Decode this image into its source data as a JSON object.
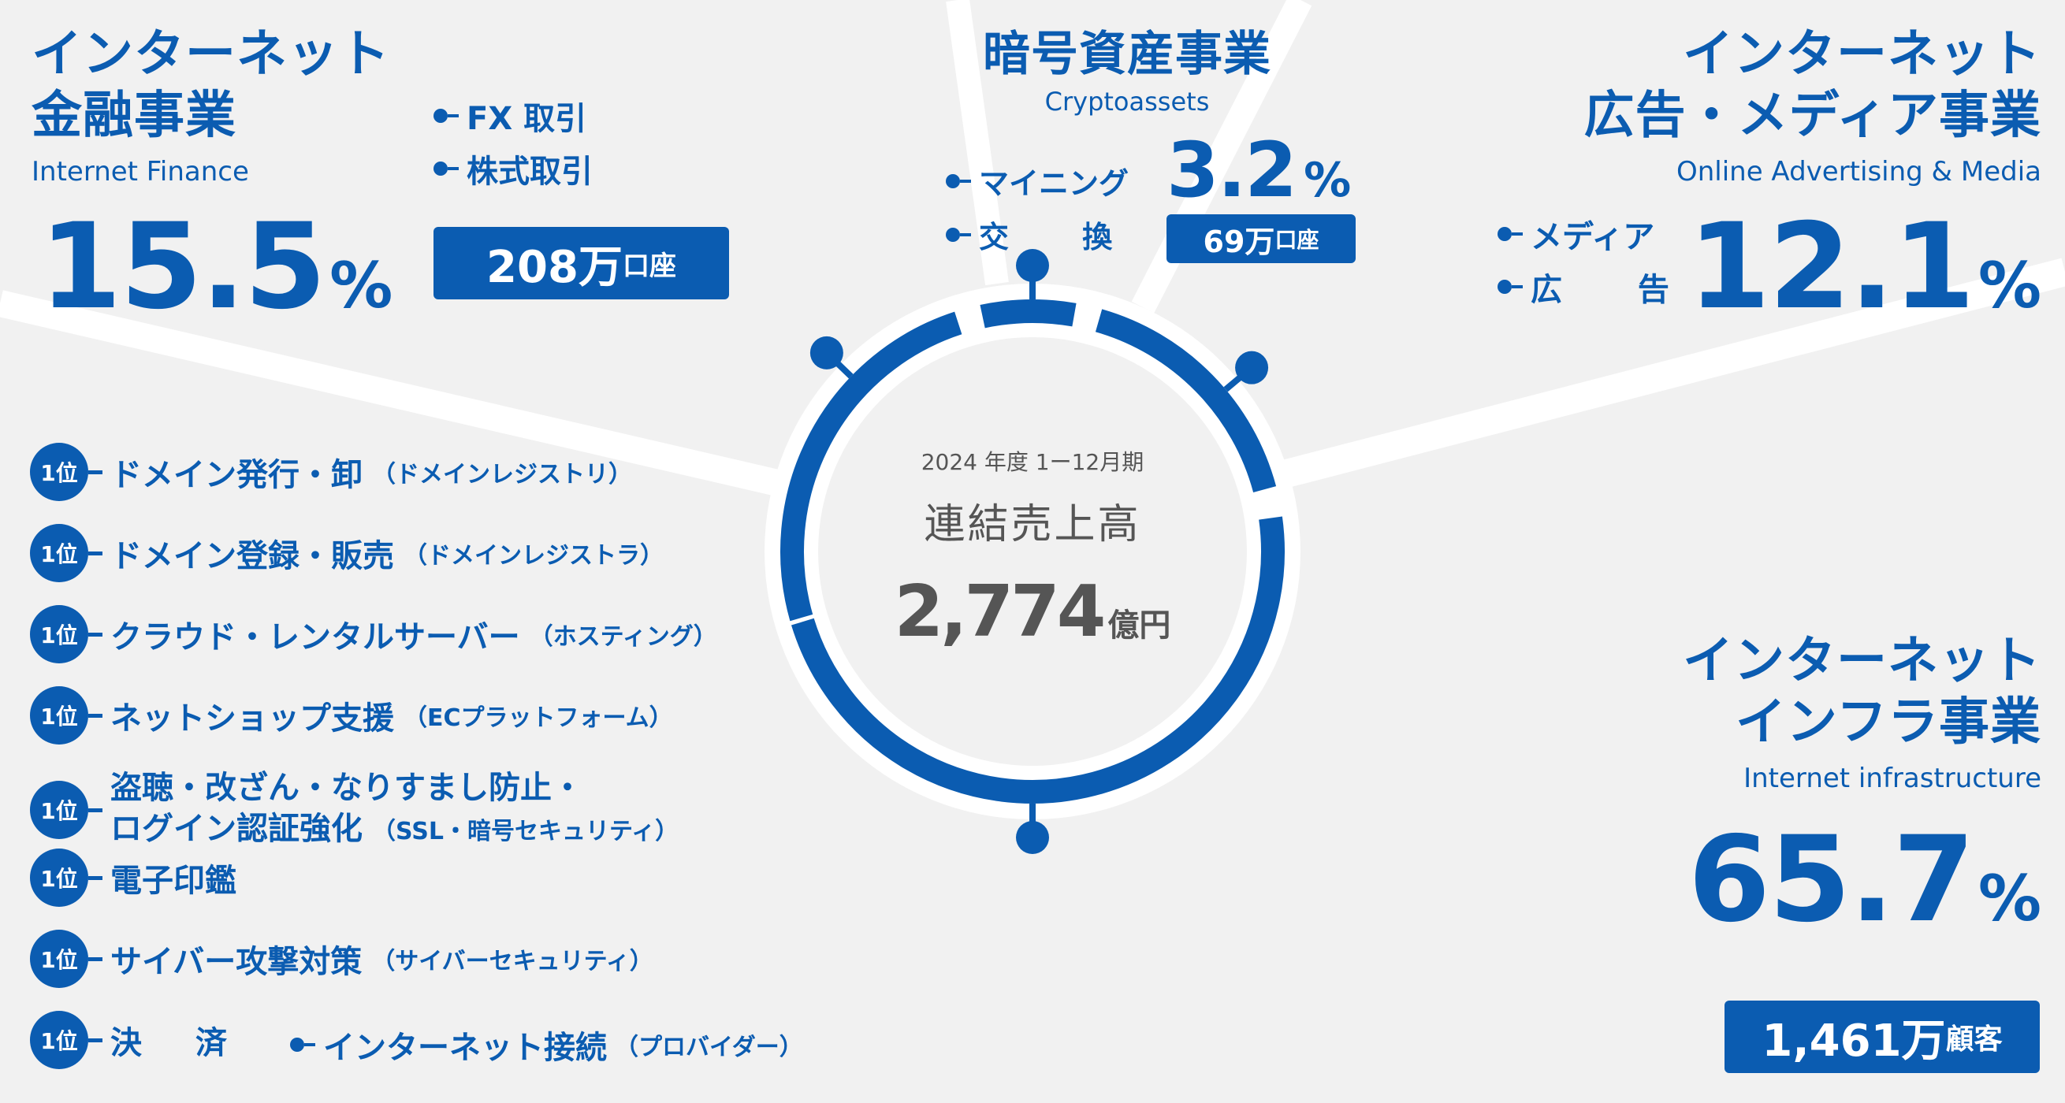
{
  "center": {
    "period": "2024 年度 1ー12月期",
    "label": "連結売上高",
    "value": "2,774",
    "unit": "億円"
  },
  "segments": {
    "finance": {
      "title_line1": "インターネット",
      "title_line2": "金融事業",
      "subtitle": "Internet Finance",
      "share_value": "15.5",
      "share_unit": "%",
      "items": [
        "FX 取引",
        "株式取引"
      ],
      "metric_value": "208万",
      "metric_unit": "口座"
    },
    "crypto": {
      "title": "暗号資産事業",
      "subtitle": "Cryptoassets",
      "items": [
        "マイニング",
        "交　 換"
      ],
      "share_value": "3.2",
      "share_unit": "%",
      "metric_value": "69万",
      "metric_unit": "口座"
    },
    "advertising": {
      "title_line1": "インターネット",
      "title_line2": "広告・メディア事業",
      "subtitle": "Online Advertising & Media",
      "items": [
        "メディア",
        "広　 告"
      ],
      "share_value": "12.1",
      "share_unit": "%"
    },
    "infrastructure": {
      "title_line1": "インターネット",
      "title_line2": "インフラ事業",
      "subtitle": "Internet infrastructure",
      "share_value": "65.7",
      "share_unit": "%",
      "metric_value": "1,461万",
      "metric_unit": "顧客"
    }
  },
  "rankings": {
    "badge": "1位",
    "items": [
      {
        "main": "ドメイン発行・卸",
        "note": "（ドメインレジストリ）"
      },
      {
        "main": "ドメイン登録・販売",
        "note": "（ドメインレジストラ）"
      },
      {
        "main": "クラウド・レンタルサーバー",
        "note": "（ホスティング）"
      },
      {
        "main": "ネットショップ支援",
        "note": "（ECプラットフォーム）"
      },
      {
        "main": "盗聴・改ざん・なりすまし防止・",
        "main2": "ログイン認証強化",
        "note": "（SSL・暗号セキュリティ）"
      },
      {
        "main": "電子印鑑",
        "note": ""
      },
      {
        "main": "サイバー攻撃対策",
        "note": "（サイバーセキュリティ）"
      },
      {
        "main": "決　済",
        "note": ""
      }
    ],
    "extra": {
      "main": "インターネット接続",
      "note": "（プロバイダー）"
    }
  },
  "colors": {
    "brand": "#0b5cb1",
    "background": "#f1f1f1",
    "divider": "#ffffff",
    "center_text": "#555555"
  }
}
